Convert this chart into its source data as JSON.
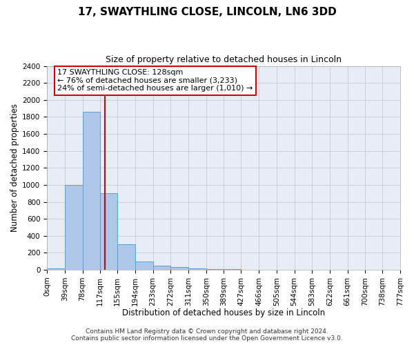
{
  "title": "17, SWAYTHLING CLOSE, LINCOLN, LN6 3DD",
  "subtitle": "Size of property relative to detached houses in Lincoln",
  "xlabel": "Distribution of detached houses by size in Lincoln",
  "ylabel": "Number of detached properties",
  "bin_edges": [
    0,
    39,
    78,
    117,
    155,
    194,
    233,
    272,
    311,
    350,
    389,
    427,
    466,
    505,
    544,
    583,
    622,
    661,
    700,
    738,
    777
  ],
  "bin_labels": [
    "0sqm",
    "39sqm",
    "78sqm",
    "117sqm",
    "155sqm",
    "194sqm",
    "233sqm",
    "272sqm",
    "311sqm",
    "350sqm",
    "389sqm",
    "427sqm",
    "466sqm",
    "505sqm",
    "544sqm",
    "583sqm",
    "622sqm",
    "661sqm",
    "700sqm",
    "738sqm",
    "777sqm"
  ],
  "bar_heights": [
    20,
    1000,
    1860,
    900,
    300,
    100,
    50,
    30,
    20,
    10,
    5,
    0,
    0,
    0,
    0,
    0,
    0,
    0,
    0,
    0
  ],
  "bar_color": "#aec6e8",
  "bar_edge_color": "#5a9fd4",
  "grid_color": "#c8d0dc",
  "background_color": "#e8edf5",
  "red_line_x": 128,
  "ylim": [
    0,
    2400
  ],
  "yticks": [
    0,
    200,
    400,
    600,
    800,
    1000,
    1200,
    1400,
    1600,
    1800,
    2000,
    2200,
    2400
  ],
  "annotation_box_title": "17 SWAYTHLING CLOSE: 128sqm",
  "annotation_line1": "← 76% of detached houses are smaller (3,233)",
  "annotation_line2": "24% of semi-detached houses are larger (1,010) →",
  "annotation_box_color": "#cc0000",
  "footer_line1": "Contains HM Land Registry data © Crown copyright and database right 2024.",
  "footer_line2": "Contains public sector information licensed under the Open Government Licence v3.0.",
  "title_fontsize": 11,
  "subtitle_fontsize": 9,
  "axis_label_fontsize": 8.5,
  "tick_fontsize": 7.5,
  "annotation_fontsize": 8,
  "footer_fontsize": 6.5
}
